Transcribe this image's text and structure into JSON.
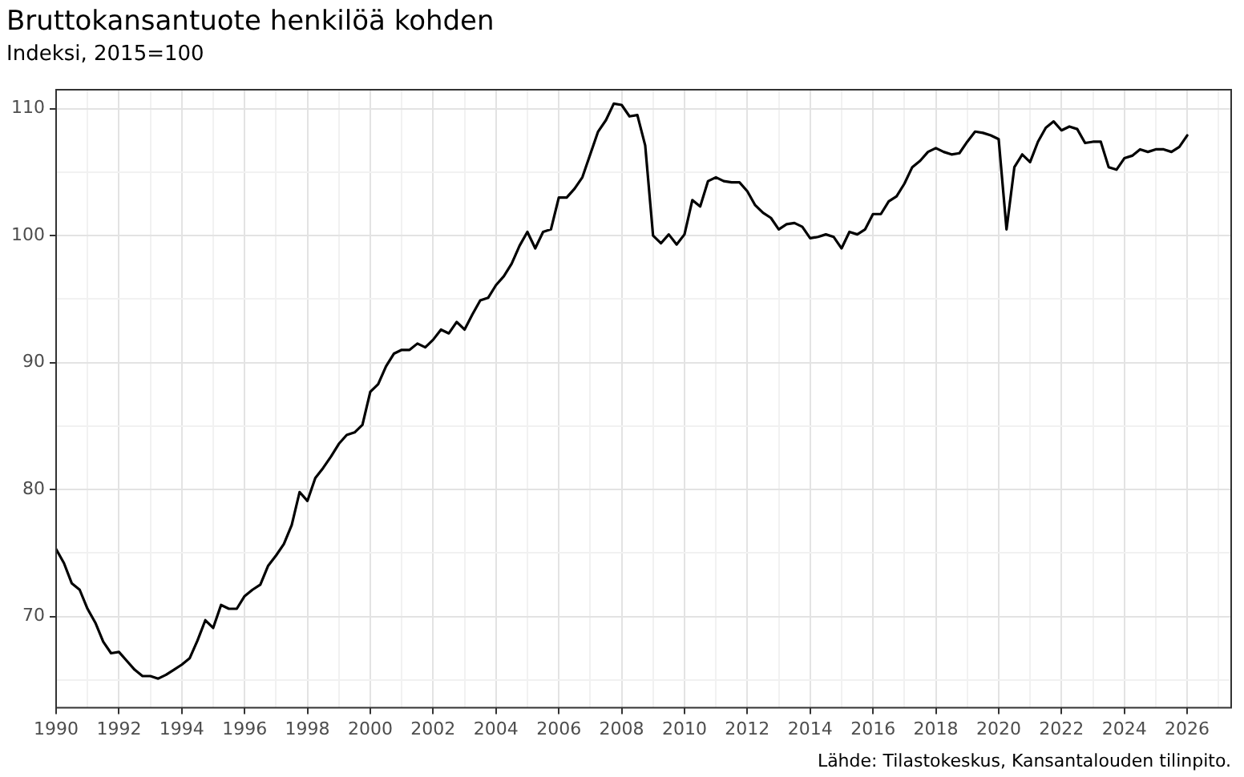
{
  "chart_data": {
    "type": "line",
    "title": "Bruttokansantuote henkilöä kohden",
    "subtitle": "Indeksi, 2015=100",
    "annotations": [
      "Lähde: Tilastokeskus, Kansantalouden tilinpito."
    ],
    "x": [
      1990,
      1990.25,
      1990.5,
      1990.75,
      1991,
      1991.25,
      1991.5,
      1991.75,
      1992,
      1992.25,
      1992.5,
      1992.75,
      1993,
      1993.25,
      1993.5,
      1993.75,
      1994,
      1994.25,
      1994.5,
      1994.75,
      1995,
      1995.25,
      1995.5,
      1995.75,
      1996,
      1996.25,
      1996.5,
      1996.75,
      1997,
      1997.25,
      1997.5,
      1997.75,
      1998,
      1998.25,
      1998.5,
      1998.75,
      1999,
      1999.25,
      1999.5,
      1999.75,
      2000,
      2000.25,
      2000.5,
      2000.75,
      2001,
      2001.25,
      2001.5,
      2001.75,
      2002,
      2002.25,
      2002.5,
      2002.75,
      2003,
      2003.25,
      2003.5,
      2003.75,
      2004,
      2004.25,
      2004.5,
      2004.75,
      2005,
      2005.25,
      2005.5,
      2005.75,
      2006,
      2006.25,
      2006.5,
      2006.75,
      2007,
      2007.25,
      2007.5,
      2007.75,
      2008,
      2008.25,
      2008.5,
      2008.75,
      2009,
      2009.25,
      2009.5,
      2009.75,
      2010,
      2010.25,
      2010.5,
      2010.75,
      2011,
      2011.25,
      2011.5,
      2011.75,
      2012,
      2012.25,
      2012.5,
      2012.75,
      2013,
      2013.25,
      2013.5,
      2013.75,
      2014,
      2014.25,
      2014.5,
      2014.75,
      2015,
      2015.25,
      2015.5,
      2015.75,
      2016,
      2016.25,
      2016.5,
      2016.75,
      2017,
      2017.25,
      2017.5,
      2017.75,
      2018,
      2018.25,
      2018.5,
      2018.75,
      2019,
      2019.25,
      2019.5,
      2019.75,
      2020,
      2020.25,
      2020.5,
      2020.75,
      2021,
      2021.25,
      2021.5,
      2021.75,
      2022,
      2022.25,
      2022.5,
      2022.75,
      2023,
      2023.25,
      2023.5,
      2023.75,
      2024,
      2024.25,
      2024.5,
      2024.75,
      2025,
      2025.25,
      2025.5,
      2025.75,
      2026
    ],
    "series": [
      {
        "color": "#000000",
        "values": [
          75.3,
          74.2,
          72.6,
          72.1,
          70.6,
          69.5,
          68.0,
          67.1,
          67.2,
          66.5,
          65.8,
          65.3,
          65.3,
          65.1,
          65.4,
          65.8,
          66.2,
          66.7,
          68.1,
          69.7,
          69.1,
          70.9,
          70.6,
          70.6,
          71.6,
          72.1,
          72.5,
          74.0,
          74.8,
          75.7,
          77.2,
          79.8,
          79.1,
          80.9,
          81.7,
          82.6,
          83.6,
          84.3,
          84.5,
          85.1,
          87.7,
          88.3,
          89.7,
          90.7,
          91.0,
          91.0,
          91.5,
          91.2,
          91.8,
          92.6,
          92.3,
          93.2,
          92.6,
          93.8,
          94.9,
          95.1,
          96.1,
          96.8,
          97.8,
          99.2,
          100.3,
          99.0,
          100.3,
          100.5,
          103.0,
          103.0,
          103.7,
          104.6,
          106.4,
          108.2,
          109.1,
          110.4,
          110.3,
          109.4,
          109.5,
          107.1,
          100.0,
          99.4,
          100.1,
          99.3,
          100.1,
          102.8,
          102.3,
          104.3,
          104.6,
          104.3,
          104.2,
          104.2,
          103.5,
          102.4,
          101.8,
          101.4,
          100.5,
          100.9,
          101.0,
          100.7,
          99.8,
          99.9,
          100.1,
          99.9,
          99.0,
          100.3,
          100.1,
          100.5,
          101.7,
          101.7,
          102.7,
          103.1,
          104.1,
          105.4,
          105.9,
          106.6,
          106.9,
          106.6,
          106.4,
          106.5,
          107.4,
          108.2,
          108.1,
          107.9,
          107.6,
          100.5,
          105.4,
          106.4,
          105.8,
          107.4,
          108.5,
          109.0,
          108.3,
          108.6,
          108.4,
          107.3,
          107.4,
          107.4,
          105.4,
          105.2,
          106.1,
          106.3,
          106.8,
          106.6,
          106.8,
          106.8,
          106.6,
          107.0,
          107.9
        ]
      }
    ],
    "xlim": [
      1990,
      2027.4
    ],
    "xticks": [
      1990,
      {
        "value": 1991,
        "label": null
      },
      1992,
      {
        "value": 1993,
        "label": null
      },
      1994,
      {
        "value": 1995,
        "label": null
      },
      1996,
      {
        "value": 1997,
        "label": null
      },
      1998,
      {
        "value": 1999,
        "label": null
      },
      2000,
      {
        "value": 2001,
        "label": null
      },
      2002,
      {
        "value": 2003,
        "label": null
      },
      2004,
      {
        "value": 2005,
        "label": null
      },
      2006,
      {
        "value": 2007,
        "label": null
      },
      2008,
      {
        "value": 2009,
        "label": null
      },
      2010,
      {
        "value": 2011,
        "label": null
      },
      2012,
      {
        "value": 2013,
        "label": null
      },
      2014,
      {
        "value": 2015,
        "label": null
      },
      2016,
      {
        "value": 2017,
        "label": null
      },
      2018,
      {
        "value": 2019,
        "label": null
      },
      2020,
      {
        "value": 2021,
        "label": null
      },
      2022,
      {
        "value": 2023,
        "label": null
      },
      2024,
      {
        "value": 2025,
        "label": null
      },
      2026,
      {
        "value": 2027,
        "label": null
      }
    ],
    "ylim": [
      62.8,
      111.5
    ],
    "yticks": [
      {
        "value": 65,
        "label": null
      },
      70,
      {
        "value": 75,
        "label": null
      },
      80,
      {
        "value": 85,
        "label": null
      },
      90,
      {
        "value": 95,
        "label": null
      },
      100,
      {
        "value": 105,
        "label": null
      },
      110
    ],
    "grid": true,
    "legend": false,
    "marker": "none",
    "line_style": "solid"
  }
}
